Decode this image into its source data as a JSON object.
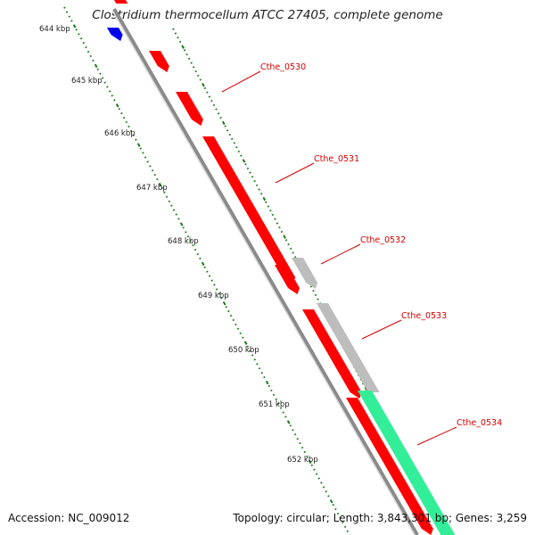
{
  "title": "Clostridium thermocellum ATCC 27405, complete genome",
  "footer": {
    "accession": "Accession: NC_009012",
    "info": "Topology: circular; Length: 3,843,301 bp; Genes: 3,259"
  },
  "ruler": [
    "644 kbp",
    "645 kbp",
    "646 kbp",
    "647 kbp",
    "648 kbp",
    "649 kbp",
    "650 kbp",
    "651 kbp",
    "652 kbp"
  ],
  "genes": [
    {
      "name": "Cthe_0530"
    },
    {
      "name": "Cthe_0531"
    },
    {
      "name": "Cthe_0532"
    },
    {
      "name": "Cthe_0533"
    },
    {
      "name": "Cthe_0534"
    }
  ],
  "colors": {
    "red": "#ff0000",
    "gray": "#bdbdbd",
    "green": "#33ee99",
    "blue": "#0000ee",
    "backbone": "#8a8a8a",
    "tick": "#1a7a1a",
    "label": "#d40000"
  }
}
